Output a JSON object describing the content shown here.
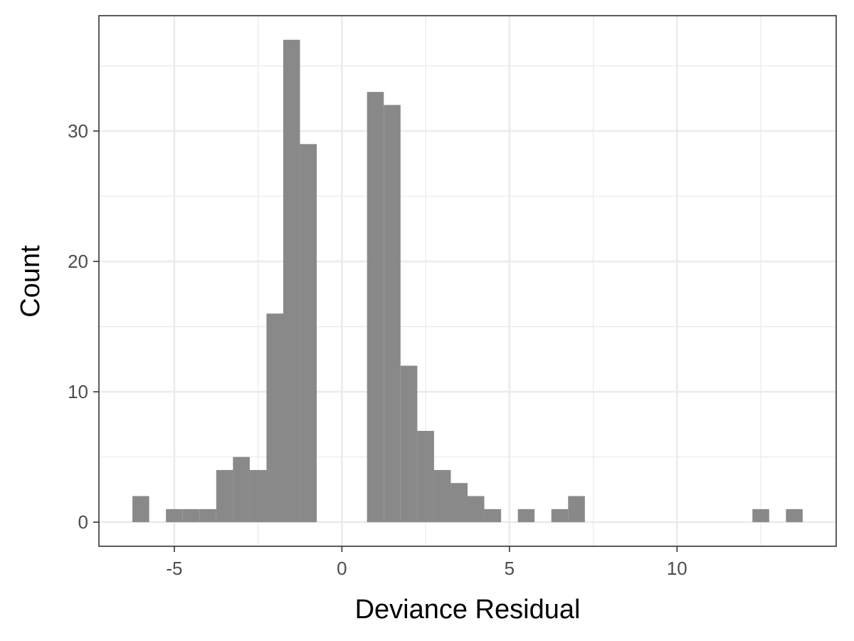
{
  "chart_data": {
    "type": "bar",
    "subtype": "histogram",
    "title": "",
    "xlabel": "Deviance Residual",
    "ylabel": "Count",
    "bin_width": 0.5,
    "bins": [
      {
        "x0": -6.25,
        "x1": -5.75,
        "count": 2
      },
      {
        "x0": -5.25,
        "x1": -4.75,
        "count": 1
      },
      {
        "x0": -4.75,
        "x1": -4.25,
        "count": 1
      },
      {
        "x0": -4.25,
        "x1": -3.75,
        "count": 1
      },
      {
        "x0": -3.75,
        "x1": -3.25,
        "count": 4
      },
      {
        "x0": -3.25,
        "x1": -2.75,
        "count": 5
      },
      {
        "x0": -2.75,
        "x1": -2.25,
        "count": 4
      },
      {
        "x0": -2.25,
        "x1": -1.75,
        "count": 16
      },
      {
        "x0": -1.75,
        "x1": -1.25,
        "count": 37
      },
      {
        "x0": -1.25,
        "x1": -0.75,
        "count": 29
      },
      {
        "x0": 0.75,
        "x1": 1.25,
        "count": 33
      },
      {
        "x0": 1.25,
        "x1": 1.75,
        "count": 32
      },
      {
        "x0": 1.75,
        "x1": 2.25,
        "count": 12
      },
      {
        "x0": 2.25,
        "x1": 2.75,
        "count": 7
      },
      {
        "x0": 2.75,
        "x1": 3.25,
        "count": 4
      },
      {
        "x0": 3.25,
        "x1": 3.75,
        "count": 3
      },
      {
        "x0": 3.75,
        "x1": 4.25,
        "count": 2
      },
      {
        "x0": 4.25,
        "x1": 4.75,
        "count": 1
      },
      {
        "x0": 5.25,
        "x1": 5.75,
        "count": 1
      },
      {
        "x0": 6.25,
        "x1": 6.75,
        "count": 1
      },
      {
        "x0": 6.75,
        "x1": 7.25,
        "count": 2
      },
      {
        "x0": 12.25,
        "x1": 12.75,
        "count": 1
      },
      {
        "x0": 13.25,
        "x1": 13.75,
        "count": 1
      }
    ],
    "xlim": [
      -7.25,
      14.75
    ],
    "ylim": [
      -1.85,
      38.85
    ],
    "x_ticks": [
      -5,
      0,
      5,
      10
    ],
    "x_tick_labels": [
      "-5",
      "0",
      "5",
      "10"
    ],
    "x_minor_ticks": [
      -2.5,
      2.5,
      7.5,
      12.5
    ],
    "y_ticks": [
      0,
      10,
      20,
      30
    ],
    "y_tick_labels": [
      "0",
      "10",
      "20",
      "30"
    ],
    "y_minor_ticks": [
      5,
      15,
      25,
      35
    ],
    "grid": true,
    "legend": "none",
    "colors": {
      "bar_fill": "#898989",
      "panel_background": "#ffffff",
      "panel_border": "#333333",
      "grid_major": "#ebebeb",
      "grid_minor": "#ebebeb",
      "tick_label": "#4d4d4d",
      "axis_title": "#000000"
    }
  }
}
